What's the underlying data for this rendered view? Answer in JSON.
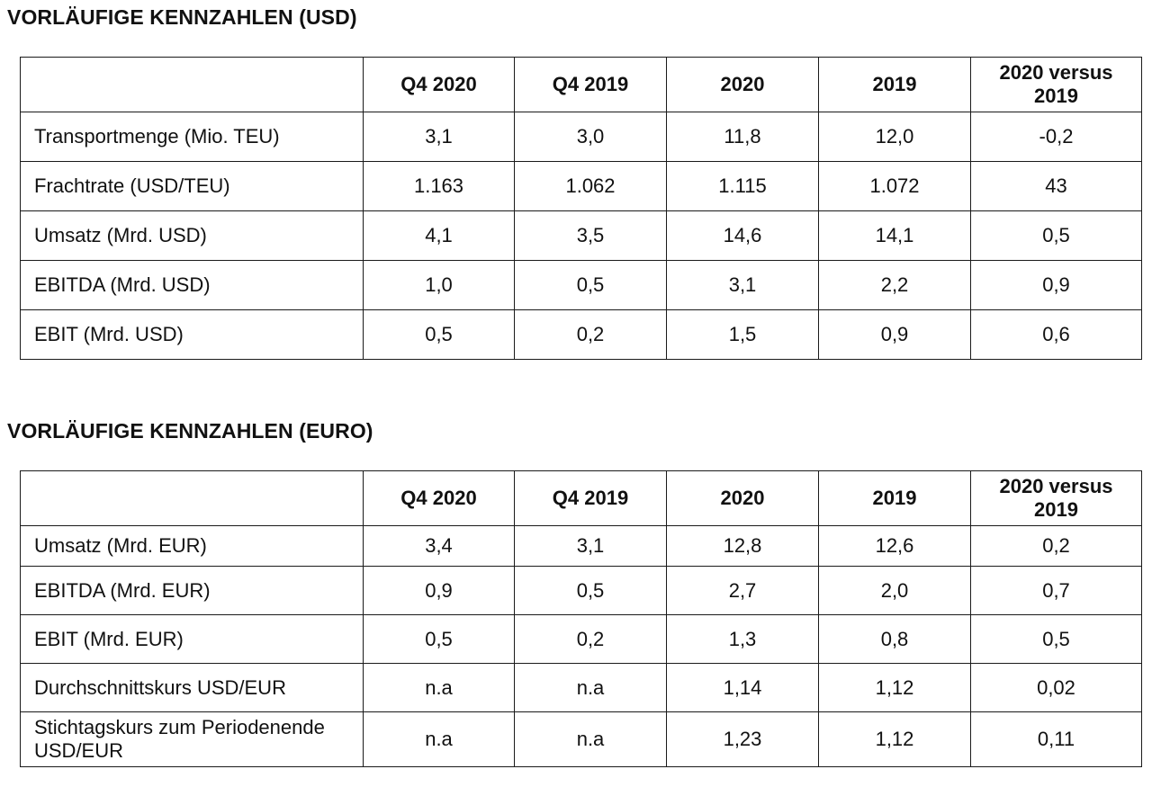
{
  "usd": {
    "title": "VORLÄUFIGE KENNZAHLEN (USD)",
    "columns": [
      "",
      "Q4 2020",
      "Q4 2019",
      "2020",
      "2019",
      "2020 versus 2019"
    ],
    "rows": [
      [
        "Transportmenge (Mio. TEU)",
        "3,1",
        "3,0",
        "11,8",
        "12,0",
        "-0,2"
      ],
      [
        "Frachtrate (USD/TEU)",
        "1.163",
        "1.062",
        "1.115",
        "1.072",
        "43"
      ],
      [
        "Umsatz (Mrd. USD)",
        "4,1",
        "3,5",
        "14,6",
        "14,1",
        "0,5"
      ],
      [
        "EBITDA (Mrd. USD)",
        "1,0",
        "0,5",
        "3,1",
        "2,2",
        "0,9"
      ],
      [
        "EBIT (Mrd. USD)",
        "0,5",
        "0,2",
        "1,5",
        "0,9",
        "0,6"
      ]
    ]
  },
  "eur": {
    "title": "VORLÄUFIGE KENNZAHLEN (EURO)",
    "columns": [
      "",
      "Q4 2020",
      "Q4 2019",
      "2020",
      "2019",
      "2020 versus 2019"
    ],
    "rows": [
      [
        "Umsatz (Mrd. EUR)",
        "3,4",
        "3,1",
        "12,8",
        "12,6",
        "0,2"
      ],
      [
        "EBITDA (Mrd. EUR)",
        "0,9",
        "0,5",
        "2,7",
        "2,0",
        "0,7"
      ],
      [
        "EBIT (Mrd. EUR)",
        "0,5",
        "0,2",
        "1,3",
        "0,8",
        "0,5"
      ],
      [
        "Durchschnittskurs USD/EUR",
        "n.a",
        "n.a",
        "1,14",
        "1,12",
        "0,02"
      ],
      [
        "Stichtagskurs zum Periodenende USD/EUR",
        "n.a",
        "n.a",
        "1,23",
        "1,12",
        "0,11"
      ]
    ]
  }
}
